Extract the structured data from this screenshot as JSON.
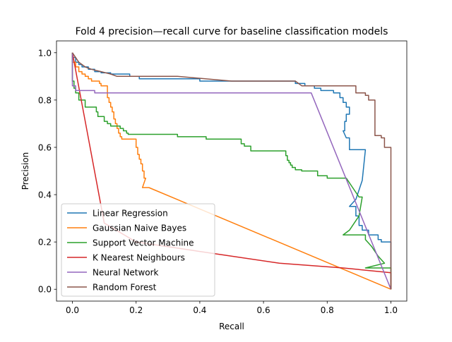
{
  "colors": {
    "linear_regression": "#1f77b4",
    "gaussian_naive_bayes": "#ff7f0e",
    "support_vector_machine": "#2ca02c",
    "k_nearest_neighbours": "#d62728",
    "neural_network": "#9467bd",
    "random_forest": "#8c564b"
  },
  "chart_data": {
    "type": "line",
    "title": "Fold 4 precision—recall curve for baseline classification models",
    "xlabel": "Recall",
    "ylabel": "Precision",
    "xlim": [
      -0.05,
      1.05
    ],
    "ylim": [
      -0.05,
      1.05
    ],
    "xticks": [
      "0.0",
      "0.2",
      "0.4",
      "0.6",
      "0.8",
      "1.0"
    ],
    "yticks": [
      "0.0",
      "0.2",
      "0.4",
      "0.6",
      "0.8",
      "1.0"
    ],
    "grid": false,
    "legend_position": "lower-left",
    "series": [
      {
        "name": "Linear Regression",
        "color_key": "linear_regression",
        "points": [
          [
            0.0,
            1.0
          ],
          [
            0.0,
            0.98
          ],
          [
            0.01,
            0.98
          ],
          [
            0.01,
            0.96
          ],
          [
            0.02,
            0.96
          ],
          [
            0.02,
            0.95
          ],
          [
            0.03,
            0.95
          ],
          [
            0.03,
            0.94
          ],
          [
            0.05,
            0.94
          ],
          [
            0.05,
            0.93
          ],
          [
            0.07,
            0.93
          ],
          [
            0.07,
            0.92
          ],
          [
            0.09,
            0.92
          ],
          [
            0.09,
            0.915
          ],
          [
            0.12,
            0.915
          ],
          [
            0.12,
            0.91
          ],
          [
            0.18,
            0.91
          ],
          [
            0.18,
            0.9
          ],
          [
            0.21,
            0.9
          ],
          [
            0.21,
            0.89
          ],
          [
            0.4,
            0.89
          ],
          [
            0.4,
            0.88
          ],
          [
            0.7,
            0.88
          ],
          [
            0.7,
            0.87
          ],
          [
            0.73,
            0.87
          ],
          [
            0.73,
            0.86
          ],
          [
            0.76,
            0.86
          ],
          [
            0.76,
            0.85
          ],
          [
            0.78,
            0.85
          ],
          [
            0.78,
            0.84
          ],
          [
            0.82,
            0.84
          ],
          [
            0.82,
            0.83
          ],
          [
            0.84,
            0.83
          ],
          [
            0.84,
            0.81
          ],
          [
            0.85,
            0.81
          ],
          [
            0.85,
            0.79
          ],
          [
            0.86,
            0.79
          ],
          [
            0.86,
            0.77
          ],
          [
            0.87,
            0.77
          ],
          [
            0.87,
            0.74
          ],
          [
            0.86,
            0.74
          ],
          [
            0.86,
            0.71
          ],
          [
            0.855,
            0.71
          ],
          [
            0.855,
            0.67
          ],
          [
            0.85,
            0.67
          ],
          [
            0.86,
            0.64
          ],
          [
            0.87,
            0.64
          ],
          [
            0.87,
            0.59
          ],
          [
            0.92,
            0.59
          ],
          [
            0.91,
            0.46
          ],
          [
            0.89,
            0.38
          ],
          [
            0.87,
            0.35
          ],
          [
            0.89,
            0.35
          ],
          [
            0.89,
            0.31
          ],
          [
            0.9,
            0.31
          ],
          [
            0.9,
            0.27
          ],
          [
            0.91,
            0.27
          ],
          [
            0.91,
            0.25
          ],
          [
            0.93,
            0.25
          ],
          [
            0.93,
            0.23
          ],
          [
            0.96,
            0.23
          ],
          [
            0.96,
            0.21
          ],
          [
            0.97,
            0.21
          ],
          [
            0.97,
            0.2
          ],
          [
            1.0,
            0.2
          ],
          [
            1.0,
            0.0
          ]
        ]
      },
      {
        "name": "Gaussian Naive Bayes",
        "color_key": "gaussian_naive_bayes",
        "points": [
          [
            0.0,
            1.0
          ],
          [
            0.0,
            0.96
          ],
          [
            0.01,
            0.96
          ],
          [
            0.01,
            0.94
          ],
          [
            0.02,
            0.94
          ],
          [
            0.02,
            0.92
          ],
          [
            0.03,
            0.92
          ],
          [
            0.03,
            0.91
          ],
          [
            0.04,
            0.91
          ],
          [
            0.04,
            0.9
          ],
          [
            0.05,
            0.9
          ],
          [
            0.05,
            0.89
          ],
          [
            0.06,
            0.89
          ],
          [
            0.06,
            0.88
          ],
          [
            0.085,
            0.88
          ],
          [
            0.085,
            0.87
          ],
          [
            0.09,
            0.87
          ],
          [
            0.09,
            0.86
          ],
          [
            0.11,
            0.86
          ],
          [
            0.11,
            0.81
          ],
          [
            0.115,
            0.81
          ],
          [
            0.115,
            0.79
          ],
          [
            0.12,
            0.79
          ],
          [
            0.12,
            0.77
          ],
          [
            0.125,
            0.77
          ],
          [
            0.125,
            0.75
          ],
          [
            0.13,
            0.75
          ],
          [
            0.13,
            0.72
          ],
          [
            0.135,
            0.72
          ],
          [
            0.135,
            0.7
          ],
          [
            0.14,
            0.7
          ],
          [
            0.14,
            0.68
          ],
          [
            0.145,
            0.68
          ],
          [
            0.145,
            0.66
          ],
          [
            0.15,
            0.66
          ],
          [
            0.15,
            0.645
          ],
          [
            0.155,
            0.645
          ],
          [
            0.155,
            0.635
          ],
          [
            0.2,
            0.635
          ],
          [
            0.2,
            0.6
          ],
          [
            0.205,
            0.6
          ],
          [
            0.205,
            0.57
          ],
          [
            0.21,
            0.57
          ],
          [
            0.21,
            0.55
          ],
          [
            0.215,
            0.55
          ],
          [
            0.215,
            0.53
          ],
          [
            0.22,
            0.53
          ],
          [
            0.22,
            0.5
          ],
          [
            0.225,
            0.5
          ],
          [
            0.225,
            0.47
          ],
          [
            0.23,
            0.47
          ],
          [
            0.22,
            0.43
          ],
          [
            0.24,
            0.43
          ],
          [
            1.0,
            0.0
          ]
        ]
      },
      {
        "name": "Support Vector Machine",
        "color_key": "support_vector_machine",
        "points": [
          [
            0.0,
            1.0
          ],
          [
            0.0,
            0.88
          ],
          [
            0.005,
            0.88
          ],
          [
            0.005,
            0.85
          ],
          [
            0.01,
            0.85
          ],
          [
            0.01,
            0.83
          ],
          [
            0.02,
            0.83
          ],
          [
            0.02,
            0.8
          ],
          [
            0.04,
            0.8
          ],
          [
            0.04,
            0.77
          ],
          [
            0.075,
            0.77
          ],
          [
            0.075,
            0.75
          ],
          [
            0.08,
            0.75
          ],
          [
            0.08,
            0.73
          ],
          [
            0.1,
            0.73
          ],
          [
            0.1,
            0.71
          ],
          [
            0.11,
            0.71
          ],
          [
            0.11,
            0.7
          ],
          [
            0.12,
            0.7
          ],
          [
            0.12,
            0.69
          ],
          [
            0.15,
            0.69
          ],
          [
            0.15,
            0.68
          ],
          [
            0.16,
            0.68
          ],
          [
            0.16,
            0.67
          ],
          [
            0.17,
            0.67
          ],
          [
            0.17,
            0.66
          ],
          [
            0.175,
            0.66
          ],
          [
            0.175,
            0.655
          ],
          [
            0.33,
            0.655
          ],
          [
            0.33,
            0.645
          ],
          [
            0.42,
            0.645
          ],
          [
            0.42,
            0.635
          ],
          [
            0.53,
            0.635
          ],
          [
            0.53,
            0.615
          ],
          [
            0.54,
            0.615
          ],
          [
            0.54,
            0.605
          ],
          [
            0.56,
            0.605
          ],
          [
            0.56,
            0.585
          ],
          [
            0.67,
            0.585
          ],
          [
            0.67,
            0.565
          ],
          [
            0.675,
            0.565
          ],
          [
            0.675,
            0.545
          ],
          [
            0.68,
            0.545
          ],
          [
            0.68,
            0.535
          ],
          [
            0.685,
            0.535
          ],
          [
            0.685,
            0.525
          ],
          [
            0.69,
            0.525
          ],
          [
            0.69,
            0.515
          ],
          [
            0.7,
            0.515
          ],
          [
            0.7,
            0.505
          ],
          [
            0.72,
            0.505
          ],
          [
            0.72,
            0.5
          ],
          [
            0.77,
            0.5
          ],
          [
            0.77,
            0.48
          ],
          [
            0.8,
            0.48
          ],
          [
            0.8,
            0.47
          ],
          [
            0.86,
            0.47
          ],
          [
            0.88,
            0.43
          ],
          [
            0.9,
            0.39
          ],
          [
            0.91,
            0.39
          ],
          [
            0.9,
            0.31
          ],
          [
            0.87,
            0.25
          ],
          [
            0.85,
            0.23
          ],
          [
            0.88,
            0.23
          ],
          [
            0.92,
            0.23
          ],
          [
            0.92,
            0.21
          ],
          [
            0.94,
            0.18
          ],
          [
            0.96,
            0.14
          ],
          [
            0.98,
            0.11
          ],
          [
            0.92,
            0.09
          ],
          [
            1.0,
            0.09
          ],
          [
            1.0,
            0.0
          ]
        ]
      },
      {
        "name": "K Nearest Neighbours",
        "color_key": "k_nearest_neighbours",
        "points": [
          [
            0.0,
            1.0
          ],
          [
            0.1,
            0.28
          ],
          [
            0.2,
            0.2
          ],
          [
            0.4,
            0.16
          ],
          [
            0.65,
            0.11
          ],
          [
            0.85,
            0.09
          ],
          [
            1.0,
            0.07
          ],
          [
            1.0,
            0.0
          ]
        ]
      },
      {
        "name": "Neural Network",
        "color_key": "neural_network",
        "points": [
          [
            0.0,
            1.0
          ],
          [
            0.0,
            0.86
          ],
          [
            0.01,
            0.86
          ],
          [
            0.01,
            0.84
          ],
          [
            0.07,
            0.84
          ],
          [
            0.07,
            0.83
          ],
          [
            0.75,
            0.83
          ],
          [
            1.0,
            0.0
          ]
        ]
      },
      {
        "name": "Random Forest",
        "color_key": "random_forest",
        "points": [
          [
            0.0,
            1.0
          ],
          [
            0.02,
            0.96
          ],
          [
            0.04,
            0.94
          ],
          [
            0.06,
            0.93
          ],
          [
            0.09,
            0.92
          ],
          [
            0.12,
            0.91
          ],
          [
            0.14,
            0.9
          ],
          [
            0.33,
            0.9
          ],
          [
            0.5,
            0.88
          ],
          [
            0.7,
            0.88
          ],
          [
            0.72,
            0.86
          ],
          [
            0.89,
            0.86
          ],
          [
            0.89,
            0.83
          ],
          [
            0.92,
            0.83
          ],
          [
            0.92,
            0.82
          ],
          [
            0.93,
            0.82
          ],
          [
            0.93,
            0.8
          ],
          [
            0.95,
            0.8
          ],
          [
            0.95,
            0.65
          ],
          [
            0.97,
            0.65
          ],
          [
            0.97,
            0.64
          ],
          [
            0.98,
            0.64
          ],
          [
            0.98,
            0.6
          ],
          [
            1.0,
            0.6
          ],
          [
            1.0,
            0.0
          ]
        ]
      }
    ]
  }
}
